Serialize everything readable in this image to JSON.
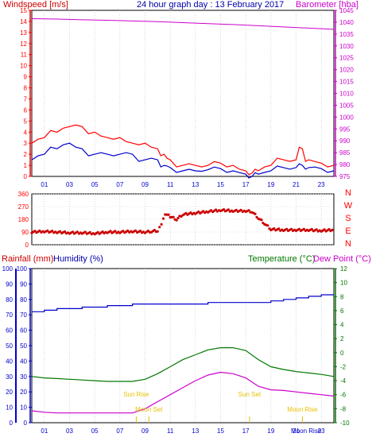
{
  "header": {
    "windspeed_label": "Windspeed [m/s]",
    "title": "24 hour graph day : 13 February 2017",
    "barometer_label": "Barometer [hba]"
  },
  "colors": {
    "red": "#ff0000",
    "darkred": "#cc0000",
    "blue": "#0000cc",
    "magenta": "#cc00cc",
    "green": "#007700",
    "gold": "#e6c000",
    "frame": "#000000"
  },
  "chart_data": [
    {
      "type": "line",
      "id": "wind-baro",
      "x_tick_labels": [
        "01",
        "03",
        "05",
        "07",
        "09",
        "11",
        "13",
        "15",
        "17",
        "19",
        "21",
        "23"
      ],
      "left_axis": {
        "label": "Windspeed [m/s]",
        "ylim": [
          0,
          15
        ],
        "ticks": [
          0,
          1,
          2,
          3,
          4,
          5,
          6,
          7,
          8,
          9,
          10,
          11,
          12,
          13,
          14,
          15
        ]
      },
      "right_axis": {
        "label": "Barometer [hba]",
        "ylim": [
          975,
          1045
        ],
        "ticks": [
          975,
          980,
          985,
          990,
          995,
          1000,
          1005,
          1010,
          1015,
          1020,
          1025,
          1030,
          1035,
          1040,
          1045
        ]
      },
      "series": [
        {
          "role": "gust",
          "axis": "left",
          "color": "#ff0000",
          "x": [
            0,
            1,
            2,
            3,
            4,
            5,
            6,
            7,
            8,
            9,
            10,
            10.5,
            11,
            12,
            13,
            14,
            15,
            16,
            17,
            17.5,
            18,
            19,
            20,
            21,
            21.5,
            22,
            23,
            24
          ],
          "y": [
            3,
            3.5,
            4,
            4.5,
            4.5,
            4,
            3.5,
            3.5,
            3,
            3,
            2.5,
            2,
            1.5,
            1,
            1,
            1,
            1.2,
            1,
            0.5,
            0.3,
            0.5,
            1,
            1.5,
            1.5,
            2.5,
            1.5,
            1.2,
            1
          ]
        },
        {
          "role": "avg",
          "axis": "left",
          "color": "#0000cc",
          "x": [
            0,
            1,
            2,
            3,
            4,
            5,
            6,
            7,
            8,
            9,
            10,
            10.5,
            11,
            12,
            13,
            14,
            15,
            16,
            17,
            17.5,
            18,
            19,
            20,
            21,
            21.5,
            22,
            23,
            24
          ],
          "y": [
            1.5,
            2,
            2.5,
            3,
            2.5,
            2,
            2,
            2,
            2,
            1.5,
            1.5,
            1,
            0.8,
            0.5,
            0.5,
            0.6,
            0.7,
            0.5,
            0.2,
            0,
            0.2,
            0.5,
            0.8,
            0.8,
            1,
            0.8,
            0.7,
            0.5
          ]
        },
        {
          "role": "pressure",
          "axis": "right",
          "color": "#cc00cc",
          "x": [
            0,
            2,
            4,
            6,
            8,
            10,
            12,
            14,
            16,
            18,
            20,
            22,
            24
          ],
          "y": [
            1041.5,
            1041.3,
            1041.0,
            1040.8,
            1040.5,
            1040.2,
            1039.8,
            1039.4,
            1039,
            1038.5,
            1038,
            1037.5,
            1037
          ]
        }
      ]
    },
    {
      "type": "scatter",
      "id": "wind-direction",
      "ylim": [
        0,
        360
      ],
      "y_ticks": [
        0,
        90,
        180,
        270,
        360
      ],
      "compass_labels": [
        "N",
        "W",
        "S",
        "E",
        "N"
      ],
      "x": [
        0,
        1,
        2,
        3,
        4,
        5,
        6,
        7,
        8,
        9,
        9.5,
        10,
        10.3,
        10.6,
        11,
        11.5,
        12,
        13,
        14,
        15,
        16,
        17,
        17.5,
        18,
        18.5,
        19,
        20,
        21,
        22,
        23,
        24
      ],
      "y": [
        90,
        95,
        90,
        85,
        85,
        80,
        90,
        90,
        95,
        90,
        95,
        100,
        150,
        220,
        200,
        180,
        215,
        225,
        235,
        245,
        240,
        240,
        235,
        190,
        150,
        110,
        105,
        105,
        105,
        100,
        105
      ],
      "color": "#cc0000"
    },
    {
      "type": "line",
      "id": "temp-hum",
      "labels": {
        "rainfall": "Rainfall (mm)",
        "humidity": "Humidity (%)",
        "temperature": "Temperature (°C)",
        "dewpoint": "Dew Point (°C)"
      },
      "x_tick_labels": [
        "01",
        "03",
        "05",
        "07",
        "09",
        "11",
        "13",
        "15",
        "17",
        "19",
        "21",
        "23"
      ],
      "left_axis": {
        "ylim": [
          0,
          100
        ],
        "ticks": [
          0,
          10,
          20,
          30,
          40,
          50,
          60,
          70,
          80,
          90,
          100
        ]
      },
      "right_axis": {
        "ylim": [
          -10,
          12
        ],
        "ticks": [
          -10,
          -8,
          -6,
          -4,
          -2,
          0,
          2,
          4,
          6,
          8,
          10,
          12
        ]
      },
      "series": [
        {
          "role": "humidity",
          "axis": "left",
          "color": "#0000cc",
          "x": [
            0,
            1,
            2,
            4,
            6,
            8,
            10,
            12,
            14,
            16,
            18,
            19,
            20,
            21,
            22,
            23,
            24
          ],
          "y": [
            72,
            73,
            74,
            75,
            76,
            77,
            77,
            77,
            78,
            78,
            78,
            79,
            80,
            81,
            82,
            83,
            83
          ]
        },
        {
          "role": "temperature",
          "axis": "right",
          "color": "#007700",
          "x": [
            0,
            1,
            2,
            3,
            4,
            5,
            6,
            7,
            8,
            9,
            10,
            11,
            12,
            13,
            14,
            15,
            16,
            17,
            18,
            19,
            20,
            21,
            22,
            23,
            24
          ],
          "y": [
            -3.4,
            -3.6,
            -3.7,
            -3.8,
            -3.9,
            -4,
            -4.1,
            -4.1,
            -4.1,
            -3.8,
            -3,
            -2,
            -1,
            -0.3,
            0.4,
            0.7,
            0.7,
            0.3,
            -1,
            -2,
            -2.4,
            -2.7,
            -2.9,
            -3.1,
            -3.4
          ]
        },
        {
          "role": "dewpoint",
          "axis": "right",
          "color": "#cc00cc",
          "x": [
            0,
            1,
            2,
            3,
            4,
            5,
            6,
            7,
            8,
            9,
            10,
            11,
            12,
            13,
            14,
            15,
            16,
            17,
            18,
            19,
            20,
            21,
            22,
            23,
            24
          ],
          "y": [
            -8.3,
            -8.5,
            -8.6,
            -8.6,
            -8.6,
            -8.6,
            -8.6,
            -8.6,
            -8.6,
            -8,
            -7,
            -6,
            -5,
            -4,
            -3.2,
            -2.8,
            -3,
            -3.6,
            -4.8,
            -5.3,
            -5.4,
            -5.6,
            -5.8,
            -6,
            -6.2
          ]
        }
      ],
      "annotations": [
        {
          "text": "Sun Rise",
          "x": 8.3,
          "row": "upper"
        },
        {
          "text": "Moon Set",
          "x": 9.3,
          "row": "lower"
        },
        {
          "text": "Sun Set",
          "x": 17.3,
          "row": "upper"
        },
        {
          "text": "Moon Rise",
          "x": 21.5,
          "row": "lower"
        }
      ],
      "bottom_label": "Moon Rise"
    }
  ]
}
